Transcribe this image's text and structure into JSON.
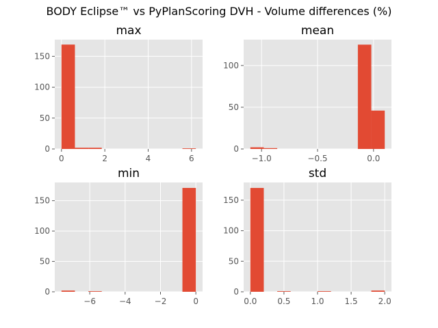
{
  "figure": {
    "title": "BODY Eclipse™ vs PyPlanScoring DVH - Volume differences (%)"
  },
  "style": {
    "plot_bg": "#e5e5e5",
    "grid": "#ffffff",
    "bar": "#e24a33",
    "tick_text": "#555555"
  },
  "chart_data": [
    {
      "type": "bar",
      "title": "max",
      "bin_edges": [
        0.0,
        0.62,
        1.24,
        1.86,
        2.48,
        3.1,
        3.72,
        4.34,
        4.96,
        5.58,
        6.2
      ],
      "counts": [
        169,
        2,
        2,
        0,
        0,
        0,
        0,
        0,
        0,
        1
      ],
      "xlim": [
        -0.31,
        6.51
      ],
      "ylim": [
        0,
        177
      ],
      "xticks": [
        0,
        2,
        4,
        6
      ],
      "xtick_labels": [
        "0",
        "2",
        "4",
        "6"
      ],
      "yticks": [
        0,
        50,
        100,
        150
      ],
      "ytick_labels": [
        "0",
        "50",
        "100",
        "150"
      ],
      "grid": true
    },
    {
      "type": "bar",
      "title": "mean",
      "bin_edges": [
        -1.1,
        -0.98,
        -0.86,
        -0.74,
        -0.62,
        -0.5,
        -0.38,
        -0.26,
        -0.14,
        -0.02,
        0.1
      ],
      "counts": [
        2,
        1,
        0,
        0,
        0,
        0,
        0,
        0,
        125,
        46
      ],
      "xlim": [
        -1.16,
        0.16
      ],
      "ylim": [
        0,
        131
      ],
      "xticks": [
        -1.0,
        -0.5,
        0.0
      ],
      "xtick_labels": [
        "−1.0",
        "−0.5",
        "0.0"
      ],
      "yticks": [
        0,
        50,
        100
      ],
      "ytick_labels": [
        "0",
        "50",
        "100"
      ],
      "grid": true
    },
    {
      "type": "bar",
      "title": "min",
      "bin_edges": [
        -7.6,
        -6.84,
        -6.08,
        -5.32,
        -4.56,
        -3.8,
        -3.04,
        -2.28,
        -1.52,
        -0.76,
        0.0
      ],
      "counts": [
        2,
        0,
        1,
        0,
        0,
        0,
        0,
        0,
        0,
        171
      ],
      "xlim": [
        -7.98,
        0.38
      ],
      "ylim": [
        0,
        180
      ],
      "xticks": [
        -6,
        -4,
        -2,
        0
      ],
      "xtick_labels": [
        "−6",
        "−4",
        "−2",
        "0"
      ],
      "yticks": [
        0,
        50,
        100,
        150
      ],
      "ytick_labels": [
        "0",
        "50",
        "100",
        "150"
      ],
      "grid": true
    },
    {
      "type": "bar",
      "title": "std",
      "bin_edges": [
        0.0,
        0.2,
        0.4,
        0.6,
        0.8,
        1.0,
        1.2,
        1.4,
        1.6,
        1.8,
        2.0
      ],
      "counts": [
        170,
        0,
        1,
        0,
        0,
        1,
        0,
        0,
        0,
        2
      ],
      "xlim": [
        -0.1,
        2.1
      ],
      "ylim": [
        0,
        179
      ],
      "xticks": [
        0.0,
        0.5,
        1.0,
        1.5,
        2.0
      ],
      "xtick_labels": [
        "0.0",
        "0.5",
        "1.0",
        "1.5",
        "2.0"
      ],
      "yticks": [
        0,
        50,
        100,
        150
      ],
      "ytick_labels": [
        "0",
        "50",
        "100",
        "150"
      ],
      "grid": true
    }
  ]
}
